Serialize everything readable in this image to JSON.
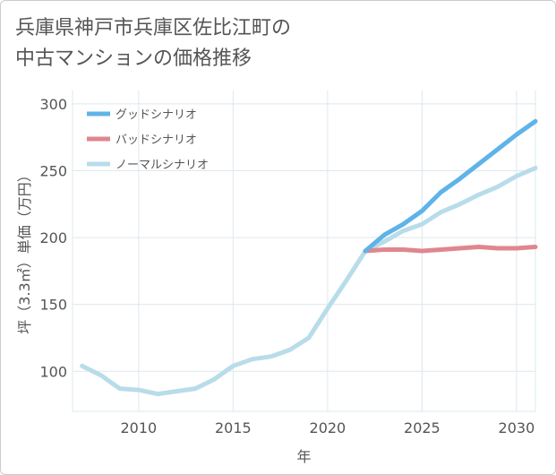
{
  "title": "兵庫県神戸市兵庫区佐比江町の\n中古マンションの価格推移",
  "chart_data": {
    "type": "line",
    "xlabel": "年",
    "ylabel": "坪（3.3㎡）単価（万円）",
    "xlim": [
      2006.5,
      2031
    ],
    "ylim": [
      70,
      310
    ],
    "x_ticks": [
      2010,
      2015,
      2020,
      2025,
      2030
    ],
    "y_ticks": [
      100,
      150,
      200,
      250,
      300
    ],
    "grid": true,
    "legend_position": "top-left",
    "series": [
      {
        "name": "グッドシナリオ",
        "color": "#5fb3e8",
        "x": [
          2022,
          2023,
          2024,
          2025,
          2026,
          2027,
          2028,
          2029,
          2030,
          2031
        ],
        "values": [
          190,
          202,
          210,
          220,
          234,
          244,
          255,
          266,
          277,
          287
        ]
      },
      {
        "name": "バッドシナリオ",
        "color": "#e0868e",
        "x": [
          2022,
          2023,
          2024,
          2025,
          2026,
          2027,
          2028,
          2029,
          2030,
          2031
        ],
        "values": [
          190,
          191,
          191,
          190,
          191,
          192,
          193,
          192,
          192,
          193
        ]
      },
      {
        "name": "ノーマルシナリオ",
        "color": "#b8dcea",
        "x": [
          2007,
          2008,
          2009,
          2010,
          2011,
          2012,
          2013,
          2014,
          2015,
          2016,
          2017,
          2018,
          2019,
          2020,
          2021,
          2022,
          2023,
          2024,
          2025,
          2026,
          2027,
          2028,
          2029,
          2030,
          2031
        ],
        "values": [
          104,
          97,
          87,
          86,
          83,
          85,
          87,
          94,
          104,
          109,
          111,
          116,
          125,
          147,
          168,
          190,
          197,
          205,
          210,
          219,
          225,
          232,
          238,
          246,
          252
        ]
      }
    ]
  }
}
